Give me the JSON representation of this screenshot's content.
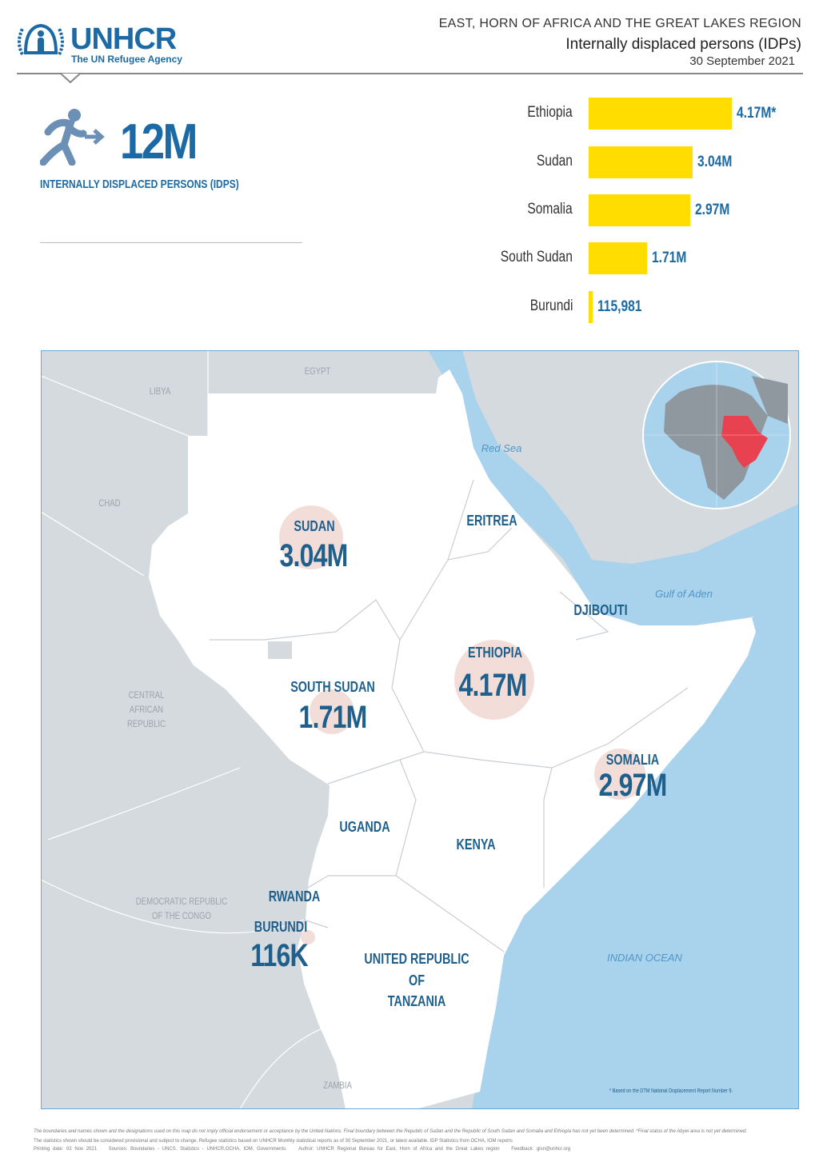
{
  "header": {
    "logo_text": "UNHCR",
    "logo_subtitle": "The UN Refugee Agency",
    "region": "EAST, HORN OF AFRICA AND THE GREAT LAKES REGION",
    "title": "Internally displaced persons (IDPs)",
    "date": "30 September 2021"
  },
  "summary": {
    "icon": "displaced-person-arrow-icon",
    "total": "12M",
    "label": "INTERNALLY DISPLACED PERSONS (IDPS)"
  },
  "colors": {
    "brand": "#1b6aa5",
    "bar": "#ffdd00",
    "sea": "#a9d2ec",
    "highlight": "#e8414f",
    "bubble": "#f3ddd8"
  },
  "chart_data": {
    "type": "bar",
    "orientation": "horizontal",
    "categories": [
      "Ethiopia",
      "Sudan",
      "Somalia",
      "South Sudan",
      "Burundi"
    ],
    "values": [
      4170000,
      3040000,
      2970000,
      1710000,
      115981
    ],
    "data_labels": [
      "4.17M*",
      "3.04M",
      "2.97M",
      "1.71M",
      "115,981"
    ]
  },
  "map": {
    "countries": [
      {
        "name": "SUDAN",
        "value": "3.04M",
        "idps": 3040000
      },
      {
        "name": "SOUTH SUDAN",
        "value": "1.71M",
        "idps": 1710000
      },
      {
        "name": "ETHIOPIA",
        "value": "4.17M",
        "idps": 4170000
      },
      {
        "name": "SOMALIA",
        "value": "2.97M",
        "idps": 2970000
      },
      {
        "name": "BURUNDI",
        "value": "116K",
        "idps": 115981
      }
    ],
    "other_labels": [
      "ERITREA",
      "DJIBOUTI",
      "UGANDA",
      "KENYA",
      "RWANDA",
      "UNITED REPUBLIC",
      "OF",
      "TANZANIA"
    ],
    "grey_labels": [
      "EGYPT",
      "LIBYA",
      "CHAD",
      "CENTRAL",
      "AFRICAN",
      "REPUBLIC",
      "DEMOCRATIC REPUBLIC",
      "OF THE CONGO",
      "ZAMBIA"
    ],
    "sea_labels": [
      "Red Sea",
      "Gulf of Aden",
      "INDIAN OCEAN"
    ],
    "footnote": "* Based on the DTM National Displacement Report Number 9."
  },
  "footer": {
    "disclaimer": "The boundaries and names shown and the designations used on this map do not imply official endorsement or acceptance by the United Nations. Final boundary between the Republic of Sudan and the Republic of South Sudan and Somalia and Ethiopia has not yet been determined. *Final status of the Abyei area is not yet determined.",
    "note": "The statistics shown should be considered provisional and subject to change. Refugee statistics based on UNHCR Monthly statistical reports as of 30 September 2021, or latest available. IDP Statistics from OCHA, IOM reports",
    "printing": "Printing date: 02 Nov 2021",
    "sources": "Sources: Boundaries - UNCS. Statistics - UNHCR,OCHA, IOM, Governments.",
    "author": "Author: UNHCR Regional Bureau for East, Horn of Africa and the Great Lakes region",
    "feedback": "Feedback: gisn@unhcr.org"
  }
}
